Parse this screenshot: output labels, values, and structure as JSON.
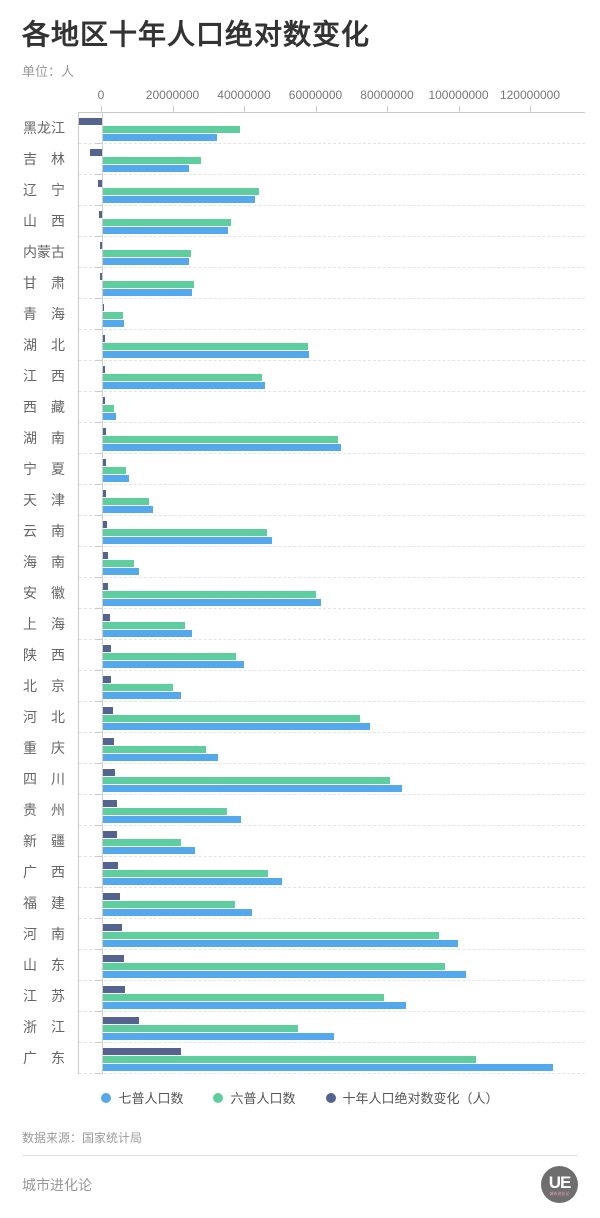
{
  "title": "各地区十年人口绝对数变化",
  "unit_label": "单位：人",
  "chart_data": {
    "type": "bar",
    "orientation": "horizontal",
    "title": "各地区十年人口绝对数变化",
    "unit": "单位：人",
    "legend_position": "bottom",
    "grid": "dashed-horizontal",
    "x_ticks": [
      0,
      20000000,
      40000000,
      60000000,
      80000000,
      100000000,
      120000000
    ],
    "x_axis_range": [
      -6462136,
      135000000
    ],
    "categories": [
      "黑龙江",
      "吉林",
      "辽宁",
      "山西",
      "内蒙古",
      "甘肃",
      "青海",
      "湖北",
      "江西",
      "西藏",
      "湖南",
      "宁夏",
      "天津",
      "云南",
      "海南",
      "安徽",
      "上海",
      "陕西",
      "北京",
      "河北",
      "重庆",
      "四川",
      "贵州",
      "新疆",
      "广西",
      "福建",
      "河南",
      "山东",
      "江苏",
      "浙江",
      "广东"
    ],
    "series": [
      {
        "name": "七普人口数",
        "color": "#54a8ec",
        "values": [
          31850088,
          24073453,
          42591407,
          34915616,
          24049155,
          25019831,
          5923957,
          57752557,
          45188635,
          3648100,
          66444864,
          7202654,
          13866009,
          47209277,
          10081232,
          61027171,
          24870895,
          39528999,
          21893095,
          74610235,
          32054159,
          83674866,
          38562148,
          25852345,
          50126804,
          41540086,
          99365519,
          101527453,
          84748016,
          64567588,
          126012510
        ]
      },
      {
        "name": "六普人口数",
        "color": "#5fce9e",
        "values": [
          38312224,
          27462297,
          43746323,
          35712111,
          24706321,
          25575254,
          5626722,
          57237740,
          44567475,
          3002166,
          65683722,
          6301350,
          12938224,
          45966239,
          8671518,
          59500510,
          23019148,
          37327378,
          19612368,
          71854202,
          28846170,
          80418200,
          34746468,
          21813334,
          46026629,
          36894216,
          94023567,
          95793065,
          78659903,
          54426891,
          104303132
        ]
      },
      {
        "name": "十年人口绝对数变化（人）",
        "color": "#54648e",
        "values": [
          -6462136,
          -3388844,
          -1154916,
          -796495,
          -657166,
          -555423,
          297235,
          514817,
          621160,
          645934,
          761142,
          901304,
          927785,
          1243038,
          1409714,
          1526661,
          1851747,
          2201621,
          2280727,
          2756033,
          3207989,
          3256666,
          3815680,
          4039011,
          4100175,
          4645870,
          5341952,
          5734388,
          6088113,
          10140697,
          21709378
        ]
      }
    ]
  },
  "footer": {
    "source": "数据来源：国家统计局",
    "brand": "城市进化论",
    "logo_text": "UE",
    "logo_subtext": "城市进化论"
  }
}
